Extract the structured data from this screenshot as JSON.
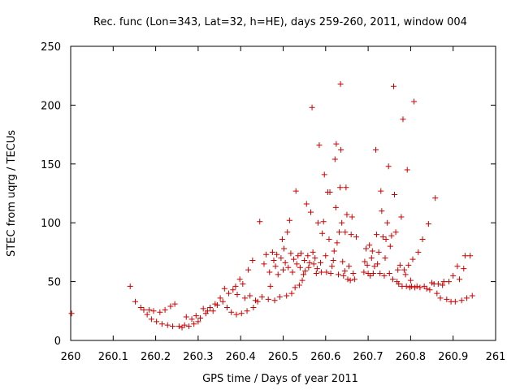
{
  "chart_data": {
    "type": "scatter",
    "title": "Rec. func (Lon=343, Lat=32, h=HE), days 259-260, 2011, window 004",
    "xlabel": "GPS time / Days of year 2011",
    "ylabel": "STEC from uqrg / TECUs",
    "xlim": [
      260,
      261
    ],
    "ylim": [
      0,
      250
    ],
    "x_ticks": [
      "260",
      "260.1",
      "260.2",
      "260.3",
      "260.4",
      "260.5",
      "260.6",
      "260.7",
      "260.8",
      "260.9",
      "261"
    ],
    "y_ticks": [
      "0",
      "50",
      "100",
      "150",
      "200",
      "250"
    ],
    "grid": false,
    "marker": "+",
    "color": "#cc0000",
    "series": [
      {
        "points": [
          [
            260.002,
            23
          ],
          [
            260.14,
            46
          ],
          [
            260.152,
            33
          ],
          [
            260.165,
            28
          ],
          [
            260.172,
            26
          ],
          [
            260.18,
            22
          ],
          [
            260.185,
            26
          ],
          [
            260.19,
            18
          ],
          [
            260.195,
            25
          ],
          [
            260.202,
            16
          ],
          [
            260.21,
            24
          ],
          [
            260.215,
            14
          ],
          [
            260.222,
            26
          ],
          [
            260.228,
            13
          ],
          [
            260.235,
            29
          ],
          [
            260.24,
            12
          ],
          [
            260.245,
            31
          ],
          [
            260.255,
            12
          ],
          [
            260.262,
            11
          ],
          [
            260.268,
            13
          ],
          [
            260.272,
            20
          ],
          [
            260.278,
            12
          ],
          [
            260.285,
            18
          ],
          [
            260.29,
            14
          ],
          [
            260.295,
            21
          ],
          [
            260.3,
            16
          ],
          [
            260.305,
            19
          ],
          [
            260.312,
            27
          ],
          [
            260.318,
            23
          ],
          [
            260.322,
            25
          ],
          [
            260.328,
            28
          ],
          [
            260.335,
            25
          ],
          [
            260.34,
            31
          ],
          [
            260.345,
            30
          ],
          [
            260.352,
            36
          ],
          [
            260.358,
            33
          ],
          [
            260.362,
            44
          ],
          [
            260.368,
            28
          ],
          [
            260.372,
            40
          ],
          [
            260.378,
            24
          ],
          [
            260.382,
            43
          ],
          [
            260.388,
            46
          ],
          [
            260.39,
            22
          ],
          [
            260.392,
            39
          ],
          [
            260.398,
            52
          ],
          [
            260.402,
            23
          ],
          [
            260.405,
            48
          ],
          [
            260.41,
            36
          ],
          [
            260.415,
            25
          ],
          [
            260.418,
            60
          ],
          [
            260.422,
            38
          ],
          [
            260.428,
            68
          ],
          [
            260.43,
            28
          ],
          [
            260.435,
            34
          ],
          [
            260.44,
            33
          ],
          [
            260.445,
            101
          ],
          [
            260.45,
            37
          ],
          [
            260.455,
            65
          ],
          [
            260.46,
            73
          ],
          [
            260.465,
            35
          ],
          [
            260.468,
            58
          ],
          [
            260.47,
            46
          ],
          [
            260.475,
            75
          ],
          [
            260.478,
            68
          ],
          [
            260.48,
            34
          ],
          [
            260.482,
            63
          ],
          [
            260.485,
            73
          ],
          [
            260.488,
            56
          ],
          [
            260.492,
            37
          ],
          [
            260.495,
            70
          ],
          [
            260.498,
            86
          ],
          [
            260.5,
            60
          ],
          [
            260.502,
            78
          ],
          [
            260.505,
            66
          ],
          [
            260.508,
            38
          ],
          [
            260.51,
            92
          ],
          [
            260.512,
            62
          ],
          [
            260.515,
            102
          ],
          [
            260.518,
            74
          ],
          [
            260.52,
            40
          ],
          [
            260.522,
            58
          ],
          [
            260.525,
            69
          ],
          [
            260.528,
            45
          ],
          [
            260.53,
            127
          ],
          [
            260.532,
            65
          ],
          [
            260.535,
            72
          ],
          [
            260.538,
            47
          ],
          [
            260.54,
            62
          ],
          [
            260.542,
            74
          ],
          [
            260.545,
            51
          ],
          [
            260.548,
            56
          ],
          [
            260.55,
            68
          ],
          [
            260.552,
            59
          ],
          [
            260.555,
            116
          ],
          [
            260.558,
            72
          ],
          [
            260.56,
            62
          ],
          [
            260.562,
            66
          ],
          [
            260.565,
            109
          ],
          [
            260.568,
            198
          ],
          [
            260.57,
            75
          ],
          [
            260.572,
            65
          ],
          [
            260.575,
            70
          ],
          [
            260.578,
            57
          ],
          [
            260.58,
            61
          ],
          [
            260.582,
            100
          ],
          [
            260.585,
            166
          ],
          [
            260.588,
            66
          ],
          [
            260.59,
            58
          ],
          [
            260.592,
            91
          ],
          [
            260.595,
            101
          ],
          [
            260.597,
            141
          ],
          [
            260.6,
            72
          ],
          [
            260.602,
            58
          ],
          [
            260.605,
            126
          ],
          [
            260.608,
            86
          ],
          [
            260.61,
            126
          ],
          [
            260.612,
            57
          ],
          [
            260.615,
            63
          ],
          [
            260.618,
            68
          ],
          [
            260.62,
            76
          ],
          [
            260.622,
            154
          ],
          [
            260.624,
            113
          ],
          [
            260.625,
            167
          ],
          [
            260.627,
            83
          ],
          [
            260.63,
            56
          ],
          [
            260.632,
            92
          ],
          [
            260.634,
            130
          ],
          [
            260.635,
            218
          ],
          [
            260.636,
            162
          ],
          [
            260.638,
            100
          ],
          [
            260.64,
            67
          ],
          [
            260.642,
            55
          ],
          [
            260.645,
            59
          ],
          [
            260.646,
            92
          ],
          [
            260.648,
            130
          ],
          [
            260.65,
            107
          ],
          [
            260.652,
            52
          ],
          [
            260.655,
            63
          ],
          [
            260.658,
            51
          ],
          [
            260.66,
            90
          ],
          [
            260.662,
            105
          ],
          [
            260.665,
            57
          ],
          [
            260.668,
            52
          ],
          [
            260.672,
            88
          ],
          [
            260.69,
            58
          ],
          [
            260.692,
            67
          ],
          [
            260.695,
            78
          ],
          [
            260.698,
            64
          ],
          [
            260.7,
            57
          ],
          [
            260.703,
            81
          ],
          [
            260.705,
            55
          ],
          [
            260.708,
            70
          ],
          [
            260.71,
            76
          ],
          [
            260.712,
            57
          ],
          [
            260.715,
            63
          ],
          [
            260.718,
            162
          ],
          [
            260.72,
            90
          ],
          [
            260.722,
            65
          ],
          [
            260.725,
            75
          ],
          [
            260.728,
            57
          ],
          [
            260.73,
            127
          ],
          [
            260.732,
            110
          ],
          [
            260.735,
            88
          ],
          [
            260.738,
            55
          ],
          [
            260.74,
            70
          ],
          [
            260.742,
            86
          ],
          [
            260.745,
            100
          ],
          [
            260.748,
            148
          ],
          [
            260.75,
            57
          ],
          [
            260.752,
            80
          ],
          [
            260.755,
            89
          ],
          [
            260.758,
            52
          ],
          [
            260.76,
            216
          ],
          [
            260.762,
            124
          ],
          [
            260.765,
            92
          ],
          [
            260.768,
            50
          ],
          [
            260.77,
            60
          ],
          [
            260.772,
            48
          ],
          [
            260.775,
            64
          ],
          [
            260.778,
            105
          ],
          [
            260.78,
            46
          ],
          [
            260.782,
            188
          ],
          [
            260.785,
            60
          ],
          [
            260.788,
            56
          ],
          [
            260.79,
            46
          ],
          [
            260.792,
            145
          ],
          [
            260.795,
            64
          ],
          [
            260.798,
            45
          ],
          [
            260.8,
            51
          ],
          [
            260.802,
            46
          ],
          [
            260.805,
            69
          ],
          [
            260.808,
            203
          ],
          [
            260.81,
            45
          ],
          [
            260.815,
            46
          ],
          [
            260.818,
            75
          ],
          [
            260.822,
            45
          ],
          [
            260.828,
            86
          ],
          [
            260.832,
            46
          ],
          [
            260.838,
            44
          ],
          [
            260.842,
            99
          ],
          [
            260.845,
            43
          ],
          [
            260.85,
            49
          ],
          [
            260.855,
            48
          ],
          [
            260.858,
            121
          ],
          [
            260.862,
            40
          ],
          [
            260.865,
            48
          ],
          [
            260.87,
            36
          ],
          [
            260.875,
            47
          ],
          [
            260.878,
            50
          ],
          [
            260.885,
            35
          ],
          [
            260.89,
            50
          ],
          [
            260.895,
            33
          ],
          [
            260.9,
            55
          ],
          [
            260.905,
            33
          ],
          [
            260.91,
            63
          ],
          [
            260.915,
            52
          ],
          [
            260.92,
            34
          ],
          [
            260.925,
            61
          ],
          [
            260.928,
            72
          ],
          [
            260.932,
            36
          ],
          [
            260.94,
            72
          ],
          [
            260.945,
            38
          ]
        ]
      }
    ]
  }
}
